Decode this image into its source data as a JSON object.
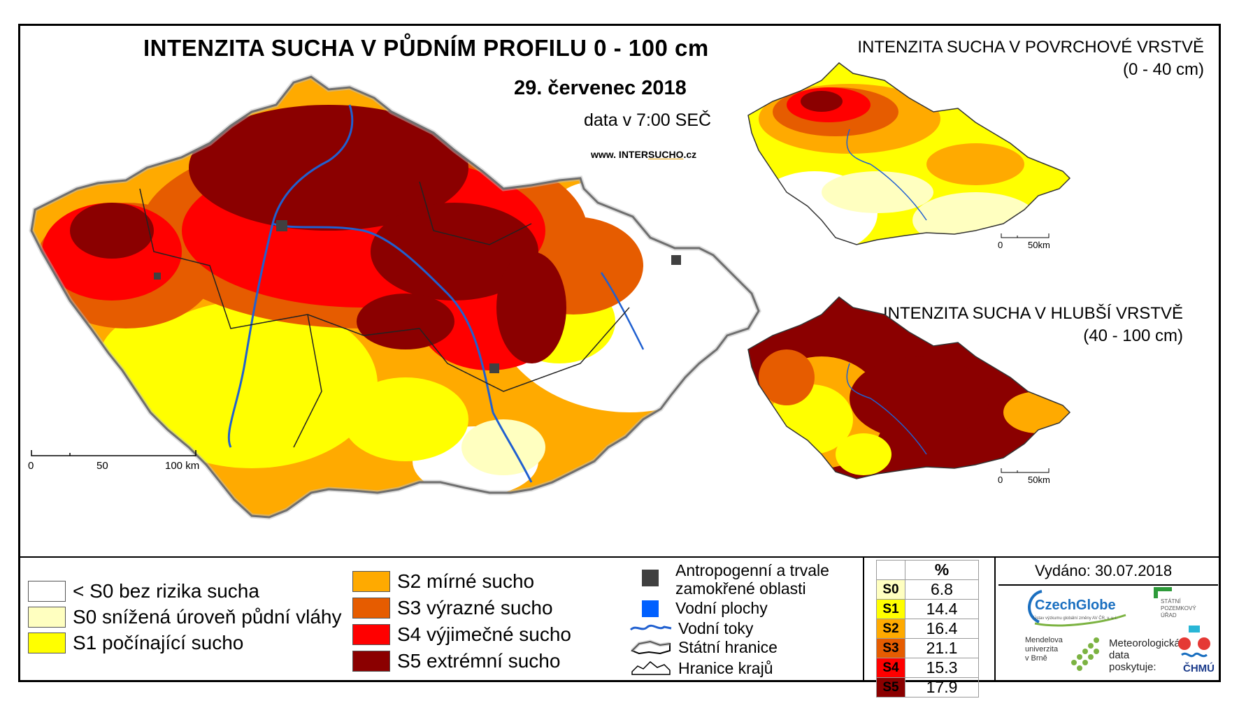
{
  "main": {
    "title": "INTENZITA SUCHA V PŮDNÍM PROFILU 0 - 100 cm",
    "date": "29. červenec 2018",
    "time": "data v 7:00 SEČ",
    "website_prefix": "www. INTER",
    "website_brand": "SUCHO",
    "website_suffix": ".cz",
    "scale": {
      "ticks": [
        "0",
        "50",
        "100 km"
      ]
    }
  },
  "inset_surface": {
    "title": "INTENZITA SUCHA V POVRCHOVÉ VRSTVĚ",
    "subtitle": "(0 - 40 cm)",
    "scale": {
      "ticks": [
        "0",
        "50km"
      ]
    }
  },
  "inset_deep": {
    "title": "INTENZITA SUCHA V HLUBŠÍ VRSTVĚ",
    "subtitle": "(40 - 100 cm)",
    "scale": {
      "ticks": [
        "0",
        "50km"
      ]
    }
  },
  "legend_classes": [
    {
      "label": "< S0 bez rizika sucha",
      "color": "#ffffff"
    },
    {
      "label": "S0 snížená úroveň půdní vláhy",
      "color": "#ffffc0"
    },
    {
      "label": "S1 počínající sucho",
      "color": "#ffff00"
    },
    {
      "label": "S2 mírné sucho",
      "color": "#ffaa00"
    },
    {
      "label": "S3 výrazné sucho",
      "color": "#e65c00"
    },
    {
      "label": "S4 výjimečné sucho",
      "color": "#ff0000"
    },
    {
      "label": "S5 extrémní sucho",
      "color": "#8b0000"
    }
  ],
  "legend_features": [
    {
      "label": "Antropogenní a trvale\nzamokřené oblasti",
      "icon": "dark-square-icon",
      "color": "#404040"
    },
    {
      "label": "Vodní plochy",
      "icon": "blue-square-icon",
      "color": "#0060ff"
    },
    {
      "label": "Vodní toky",
      "icon": "river-line-icon",
      "color": "#2060d0"
    },
    {
      "label": "Státní hranice",
      "icon": "state-border-icon",
      "color": "#000000"
    },
    {
      "label": "Hranice krajů",
      "icon": "region-border-icon",
      "color": "#000000"
    }
  ],
  "stats": {
    "header": "%",
    "rows": [
      {
        "code": "S0",
        "value": "6.8",
        "color": "#ffffc0"
      },
      {
        "code": "S1",
        "value": "14.4",
        "color": "#ffff00"
      },
      {
        "code": "S2",
        "value": "16.4",
        "color": "#ffaa00"
      },
      {
        "code": "S3",
        "value": "21.1",
        "color": "#e65c00"
      },
      {
        "code": "S4",
        "value": "15.3",
        "color": "#ff0000"
      },
      {
        "code": "S5",
        "value": "17.9",
        "color": "#8b0000"
      }
    ]
  },
  "issued": "Vydáno: 30.07.2018",
  "logos": {
    "czechglobe": "CzechGlobe",
    "czechglobe_sub": "Ústav výzkumu globální změny AV ČR, v. v. i.",
    "spu_line1": "STÁTNÍ",
    "spu_line2": "POZEMKOVÝ",
    "spu_line3": "ÚŘAD",
    "mendelu_line1": "Mendelova",
    "mendelu_line2": "univerzita",
    "mendelu_line3": "v Brně",
    "meteo_line1": "Meteorologická",
    "meteo_line2": "data",
    "meteo_line3": "poskytuje:",
    "chmu": "ČHMÚ"
  }
}
